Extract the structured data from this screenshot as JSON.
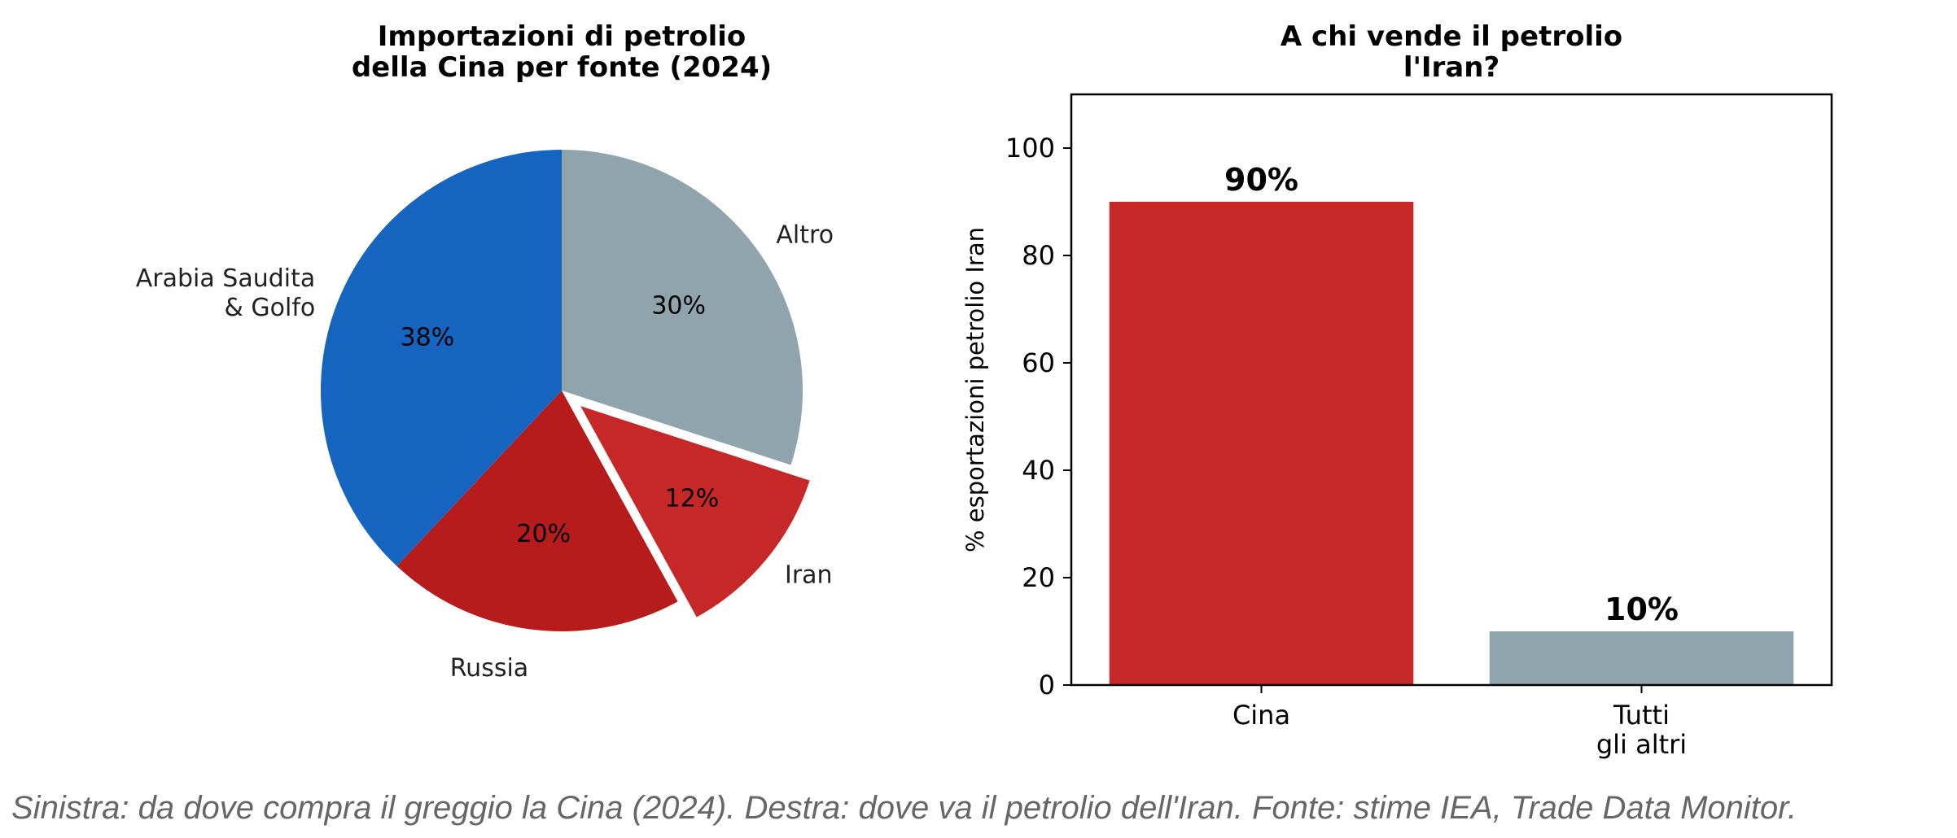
{
  "chart_data": [
    {
      "type": "pie",
      "title": [
        "Importazioni di petrolio",
        "della Cina per fonte (2024)"
      ],
      "slices": [
        {
          "label": "Altro",
          "value": 30,
          "pct_label": "30%",
          "color": "#90a4ae",
          "explode": false
        },
        {
          "label": "Iran",
          "value": 12,
          "pct_label": "12%",
          "color": "#c62828",
          "explode": true
        },
        {
          "label": "Russia",
          "value": 20,
          "pct_label": "20%",
          "color": "#b71c1c",
          "explode": false
        },
        {
          "label": [
            "Arabia Saudita",
            "& Golfo"
          ],
          "value": 38,
          "pct_label": "38%",
          "color": "#1565c0",
          "explode": false
        }
      ],
      "start_angle": 90,
      "direction": "clockwise"
    },
    {
      "type": "bar",
      "title": [
        "A chi vende il petrolio",
        "l'Iran?"
      ],
      "categories": [
        [
          "Cina"
        ],
        [
          "Tutti",
          "gli altri"
        ]
      ],
      "values": [
        90,
        10
      ],
      "value_labels": [
        "90%",
        "10%"
      ],
      "colors": [
        "#c62828",
        "#90a4ae"
      ],
      "ylabel": "% esportazioni petrolio Iran",
      "ylim": [
        0,
        110
      ],
      "yticks": [
        0,
        20,
        40,
        60,
        80,
        100
      ],
      "grid": false
    }
  ],
  "caption": "Sinistra: da dove compra il greggio la Cina (2024). Destra: dove va il petrolio dell'Iran. Fonte: stime IEA, Trade Data Monitor."
}
